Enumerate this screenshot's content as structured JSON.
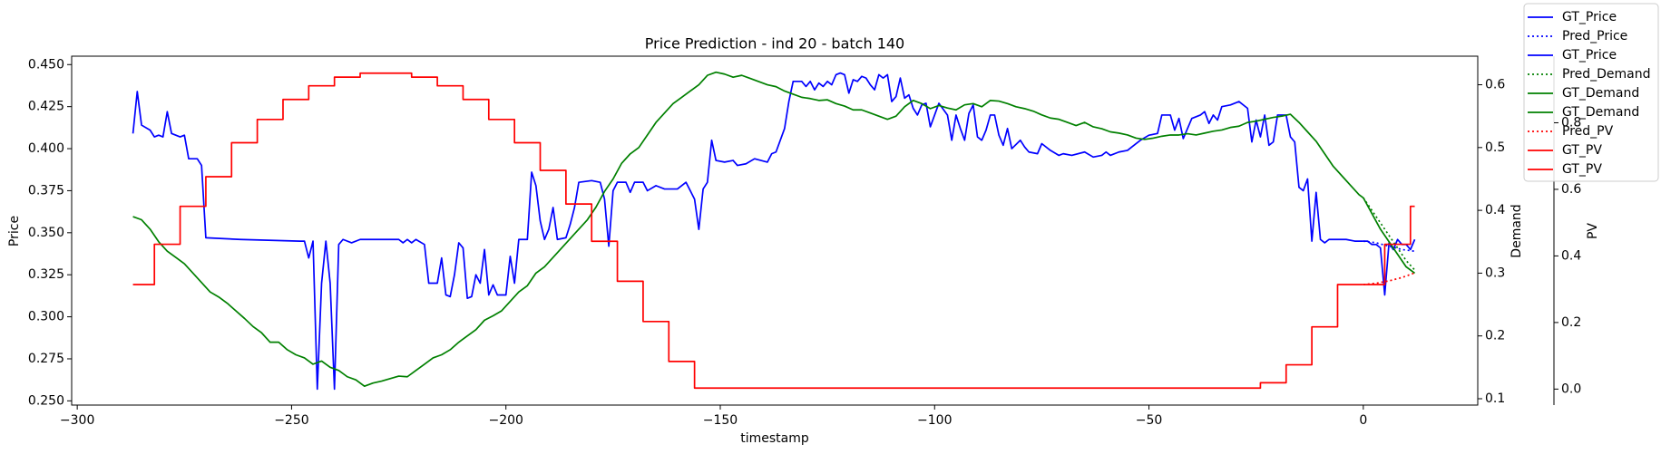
{
  "chart_data": {
    "type": "line",
    "title": "Price Prediction - ind 20 - batch 140",
    "x_label": "timestamp",
    "y_label": "Price",
    "y2_label": "Demand",
    "y3_label": "PV",
    "y_label_color": "#0000ff",
    "y2_label_color": "#008000",
    "y3_label_color": "#ff0000",
    "legend": "upper right",
    "xlim": [
      -301.3,
      26.7
    ],
    "xticks": [
      {
        "value": -300,
        "label": "−300"
      },
      {
        "value": -250,
        "label": "−250"
      },
      {
        "value": -200,
        "label": "−200"
      },
      {
        "value": -150,
        "label": "−150"
      },
      {
        "value": -100,
        "label": "−100"
      },
      {
        "value": -50,
        "label": "−50"
      },
      0
    ],
    "ylim": [
      0.2475,
      0.455
    ],
    "yticks": [
      {
        "value": 0.25,
        "label": "0.250"
      },
      {
        "value": 0.275,
        "label": "0.275"
      },
      {
        "value": 0.3,
        "label": "0.300"
      },
      {
        "value": 0.325,
        "label": "0.325"
      },
      {
        "value": 0.35,
        "label": "0.350"
      },
      {
        "value": 0.375,
        "label": "0.375"
      },
      {
        "value": 0.4,
        "label": "0.400"
      },
      {
        "value": 0.425,
        "label": "0.425"
      },
      {
        "value": 0.45,
        "label": "0.450"
      }
    ],
    "y2lim": [
      0.0899,
      0.6455
    ],
    "y2ticks": [
      0.1,
      0.2,
      0.3,
      0.4,
      0.5,
      0.6
    ],
    "y3lim": [
      -0.048,
      1.0
    ],
    "y3ticks": [
      {
        "value": 0,
        "label": "0.0"
      },
      0.2,
      0.4,
      0.6,
      0.8
    ],
    "series": [
      {
        "name": "GT_Price",
        "color": "#0000ff",
        "linestyle": "solid",
        "x": [
          -287,
          -286,
          -285,
          -283,
          -282,
          -281,
          -280,
          -279,
          -278,
          -276,
          -275,
          -274,
          -272,
          -271,
          -270,
          -262,
          -248,
          -247,
          -246,
          -245,
          -244,
          -243,
          -242,
          -241,
          -240,
          -239,
          -238,
          -236,
          -234,
          -225,
          -224,
          -223,
          -222,
          -221,
          -219,
          -218,
          -216,
          -215,
          -214,
          -213,
          -212,
          -211,
          -210,
          -209,
          -208,
          -207,
          -206,
          -205,
          -204,
          -203,
          -202,
          -200,
          -199,
          -198,
          -197,
          -195,
          -194,
          -193,
          -192,
          -191,
          -190,
          -189,
          -188,
          -186,
          -185,
          -184,
          -183,
          -180,
          -178,
          -177,
          -176,
          -175,
          -174,
          -172,
          -171,
          -170,
          -168,
          -167,
          -165,
          -163,
          -160,
          -158,
          -156,
          -155,
          -154,
          -153,
          -152,
          -151,
          -149,
          -147,
          -146,
          -144,
          -142,
          -139,
          -138,
          -137,
          -135,
          -134,
          -133,
          -131,
          -130,
          -129,
          -128,
          -127,
          -126,
          -125,
          -124,
          -123,
          -122,
          -121,
          -120,
          -119,
          -118,
          -117,
          -116,
          -115,
          -114,
          -113,
          -112,
          -111,
          -110,
          -109,
          -108,
          -107,
          -106,
          -105,
          -104,
          -103,
          -102,
          -101,
          -100,
          -99,
          -97,
          -96,
          -95,
          -94,
          -93,
          -92,
          -91,
          -90,
          -89,
          -88,
          -87,
          -86,
          -85,
          -84,
          -83,
          -82,
          -80,
          -79,
          -78,
          -76,
          -75,
          -73,
          -71,
          -70,
          -68,
          -65,
          -63,
          -61,
          -60,
          -59,
          -57,
          -55,
          -54,
          -52,
          -50,
          -48,
          -47,
          -45,
          -44,
          -43,
          -42,
          -41,
          -40,
          -38,
          -37,
          -36,
          -35,
          -34,
          -33,
          -31,
          -29,
          -27,
          -26,
          -25,
          -24,
          -23,
          -22,
          -21,
          -20,
          -18,
          -17,
          -16,
          -15,
          -14,
          -13,
          -12,
          -11,
          -10,
          -9,
          -8,
          -4,
          -2,
          0
        ],
        "values": [
          0.409,
          0.434,
          0.414,
          0.411,
          0.407,
          0.408,
          0.407,
          0.422,
          0.409,
          0.407,
          0.408,
          0.394,
          0.394,
          0.39,
          0.347,
          0.346,
          0.345,
          0.345,
          0.335,
          0.345,
          0.257,
          0.32,
          0.345,
          0.32,
          0.257,
          0.343,
          0.346,
          0.344,
          0.346,
          0.346,
          0.344,
          0.346,
          0.344,
          0.346,
          0.343,
          0.32,
          0.32,
          0.335,
          0.313,
          0.312,
          0.325,
          0.344,
          0.341,
          0.311,
          0.312,
          0.325,
          0.32,
          0.34,
          0.313,
          0.319,
          0.313,
          0.313,
          0.336,
          0.32,
          0.346,
          0.346,
          0.386,
          0.378,
          0.357,
          0.346,
          0.352,
          0.365,
          0.346,
          0.347,
          0.355,
          0.365,
          0.38,
          0.381,
          0.38,
          0.37,
          0.342,
          0.375,
          0.38,
          0.38,
          0.374,
          0.38,
          0.38,
          0.375,
          0.378,
          0.376,
          0.376,
          0.38,
          0.37,
          0.352,
          0.376,
          0.38,
          0.405,
          0.393,
          0.392,
          0.393,
          0.39,
          0.391,
          0.394,
          0.392,
          0.397,
          0.398,
          0.412,
          0.428,
          0.44,
          0.44,
          0.437,
          0.44,
          0.435,
          0.439,
          0.437,
          0.44,
          0.438,
          0.444,
          0.445,
          0.444,
          0.433,
          0.441,
          0.44,
          0.443,
          0.442,
          0.438,
          0.435,
          0.444,
          0.442,
          0.444,
          0.428,
          0.431,
          0.442,
          0.43,
          0.432,
          0.424,
          0.42,
          0.426,
          0.427,
          0.413,
          0.42,
          0.427,
          0.42,
          0.405,
          0.42,
          0.412,
          0.405,
          0.421,
          0.426,
          0.407,
          0.405,
          0.411,
          0.42,
          0.42,
          0.408,
          0.402,
          0.412,
          0.4,
          0.405,
          0.401,
          0.398,
          0.397,
          0.403,
          0.399,
          0.396,
          0.397,
          0.396,
          0.398,
          0.395,
          0.396,
          0.398,
          0.396,
          0.398,
          0.399,
          0.401,
          0.405,
          0.408,
          0.409,
          0.42,
          0.42,
          0.411,
          0.418,
          0.406,
          0.412,
          0.418,
          0.42,
          0.422,
          0.415,
          0.42,
          0.417,
          0.425,
          0.426,
          0.428,
          0.424,
          0.404,
          0.417,
          0.407,
          0.42,
          0.402,
          0.404,
          0.42,
          0.42,
          0.407,
          0.404,
          0.377,
          0.375,
          0.382,
          0.345,
          0.374,
          0.346,
          0.344,
          0.346,
          0.346,
          0.345,
          0.345
        ]
      },
      {
        "name": "Pred_Price",
        "color": "#0000ff",
        "linestyle": "dotted",
        "x": [
          0,
          3,
          6,
          9,
          12
        ],
        "values": [
          0.345,
          0.344,
          0.342,
          0.34,
          0.339
        ]
      },
      {
        "name": "GT_Price",
        "color": "#0000ff",
        "linestyle": "solid",
        "x": [
          0,
          1,
          2,
          3,
          4,
          5,
          6,
          7,
          8,
          9,
          10,
          11,
          12
        ],
        "values": [
          0.345,
          0.345,
          0.343,
          0.343,
          0.341,
          0.313,
          0.344,
          0.34,
          0.346,
          0.343,
          0.343,
          0.34,
          0.346
        ]
      },
      {
        "name": "Pred_Demand",
        "color": "#008000",
        "linestyle": "dotted",
        "axis": "y2",
        "x": [
          0,
          2,
          4,
          6,
          8,
          10,
          12
        ],
        "values": [
          0.42,
          0.4,
          0.38,
          0.36,
          0.34,
          0.32,
          0.305
        ]
      },
      {
        "name": "GT_Demand",
        "color": "#008000",
        "linestyle": "solid",
        "axis": "y2",
        "x": [
          -287,
          -285,
          -283,
          -281,
          -279,
          -277,
          -275,
          -273,
          -271,
          -269,
          -267,
          -265,
          -263,
          -261,
          -259,
          -257,
          -255,
          -253,
          -251,
          -249,
          -247,
          -245,
          -243,
          -241,
          -239,
          -237,
          -235,
          -233,
          -231,
          -229,
          -227,
          -225,
          -223,
          -221,
          -219,
          -217,
          -215,
          -213,
          -211,
          -209,
          -207,
          -205,
          -203,
          -201,
          -199,
          -197,
          -195,
          -193,
          -191,
          -189,
          -187,
          -185,
          -183,
          -181,
          -179,
          -177,
          -175,
          -173,
          -171,
          -169,
          -167,
          -165,
          -163,
          -161,
          -159,
          -157,
          -155,
          -153,
          -151,
          -149,
          -147,
          -145,
          -143,
          -141,
          -139,
          -137,
          -135,
          -133,
          -131,
          -129,
          -127,
          -125,
          -123,
          -121,
          -119,
          -117,
          -115,
          -113,
          -111,
          -109,
          -107,
          -105,
          -103,
          -101,
          -99,
          -97,
          -95,
          -93,
          -91,
          -89,
          -87,
          -85,
          -83,
          -81,
          -79,
          -77,
          -75,
          -73,
          -71,
          -69,
          -67,
          -65,
          -63,
          -61,
          -59,
          -57,
          -55,
          -53,
          -51,
          -49,
          -47,
          -45,
          -43,
          -41,
          -39,
          -37,
          -35,
          -33,
          -31,
          -29,
          -27,
          -25,
          -23,
          -21,
          -19,
          -17,
          -15,
          -13,
          -11,
          -9,
          -7,
          -5,
          -3,
          -1,
          0
        ],
        "values": [
          0.39,
          0.385,
          0.37,
          0.35,
          0.335,
          0.325,
          0.315,
          0.3,
          0.285,
          0.27,
          0.262,
          0.252,
          0.24,
          0.228,
          0.215,
          0.205,
          0.19,
          0.19,
          0.178,
          0.17,
          0.165,
          0.155,
          0.16,
          0.15,
          0.145,
          0.135,
          0.13,
          0.12,
          0.125,
          0.128,
          0.132,
          0.136,
          0.135,
          0.145,
          0.155,
          0.165,
          0.17,
          0.178,
          0.19,
          0.2,
          0.21,
          0.225,
          0.232,
          0.24,
          0.255,
          0.27,
          0.28,
          0.3,
          0.31,
          0.325,
          0.34,
          0.355,
          0.37,
          0.385,
          0.405,
          0.43,
          0.45,
          0.475,
          0.49,
          0.5,
          0.52,
          0.54,
          0.555,
          0.57,
          0.58,
          0.59,
          0.6,
          0.615,
          0.62,
          0.617,
          0.612,
          0.615,
          0.61,
          0.605,
          0.6,
          0.597,
          0.59,
          0.585,
          0.58,
          0.578,
          0.575,
          0.576,
          0.57,
          0.566,
          0.56,
          0.56,
          0.555,
          0.55,
          0.545,
          0.55,
          0.565,
          0.575,
          0.57,
          0.562,
          0.567,
          0.563,
          0.56,
          0.568,
          0.57,
          0.565,
          0.575,
          0.574,
          0.57,
          0.565,
          0.562,
          0.558,
          0.552,
          0.547,
          0.545,
          0.54,
          0.535,
          0.54,
          0.533,
          0.53,
          0.525,
          0.523,
          0.52,
          0.515,
          0.513,
          0.515,
          0.518,
          0.52,
          0.52,
          0.522,
          0.52,
          0.523,
          0.526,
          0.528,
          0.532,
          0.534,
          0.54,
          0.542,
          0.545,
          0.548,
          0.55,
          0.553,
          0.54,
          0.525,
          0.51,
          0.49,
          0.47,
          0.455,
          0.44,
          0.425,
          0.42
        ]
      },
      {
        "name": "GT_Demand",
        "color": "#008000",
        "linestyle": "solid",
        "axis": "y2",
        "x": [
          0,
          2,
          4,
          6,
          8,
          10,
          12
        ],
        "values": [
          0.42,
          0.395,
          0.37,
          0.35,
          0.33,
          0.31,
          0.3
        ]
      },
      {
        "name": "Pred_PV",
        "color": "#ff0000",
        "linestyle": "dotted",
        "axis": "y3",
        "x": [
          0,
          3,
          6,
          9,
          12
        ],
        "values": [
          0.314,
          0.318,
          0.325,
          0.335,
          0.349
        ]
      },
      {
        "name": "GT_PV",
        "color": "#ff0000",
        "linestyle": "solid",
        "axis": "y3",
        "drawstyle": "steps-post",
        "x": [
          -287,
          -282,
          -276,
          -270,
          -264,
          -258,
          -252,
          -246,
          -240,
          -234,
          -222,
          -216,
          -210,
          -204,
          -198,
          -192,
          -186,
          -180,
          -174,
          -168,
          -162,
          -156,
          -24,
          -18,
          -12,
          -6,
          0
        ],
        "values": [
          0.314,
          0.435,
          0.549,
          0.638,
          0.74,
          0.81,
          0.87,
          0.911,
          0.937,
          0.949,
          0.937,
          0.911,
          0.87,
          0.81,
          0.74,
          0.657,
          0.556,
          0.444,
          0.324,
          0.203,
          0.083,
          0.003,
          0.019,
          0.073,
          0.187,
          0.314,
          0.314
        ]
      },
      {
        "name": "GT_PV",
        "color": "#ff0000",
        "linestyle": "solid",
        "axis": "y3",
        "drawstyle": "steps-post",
        "x": [
          0,
          5,
          11,
          12
        ],
        "values": [
          0.314,
          0.435,
          0.549,
          0.549
        ]
      }
    ]
  }
}
